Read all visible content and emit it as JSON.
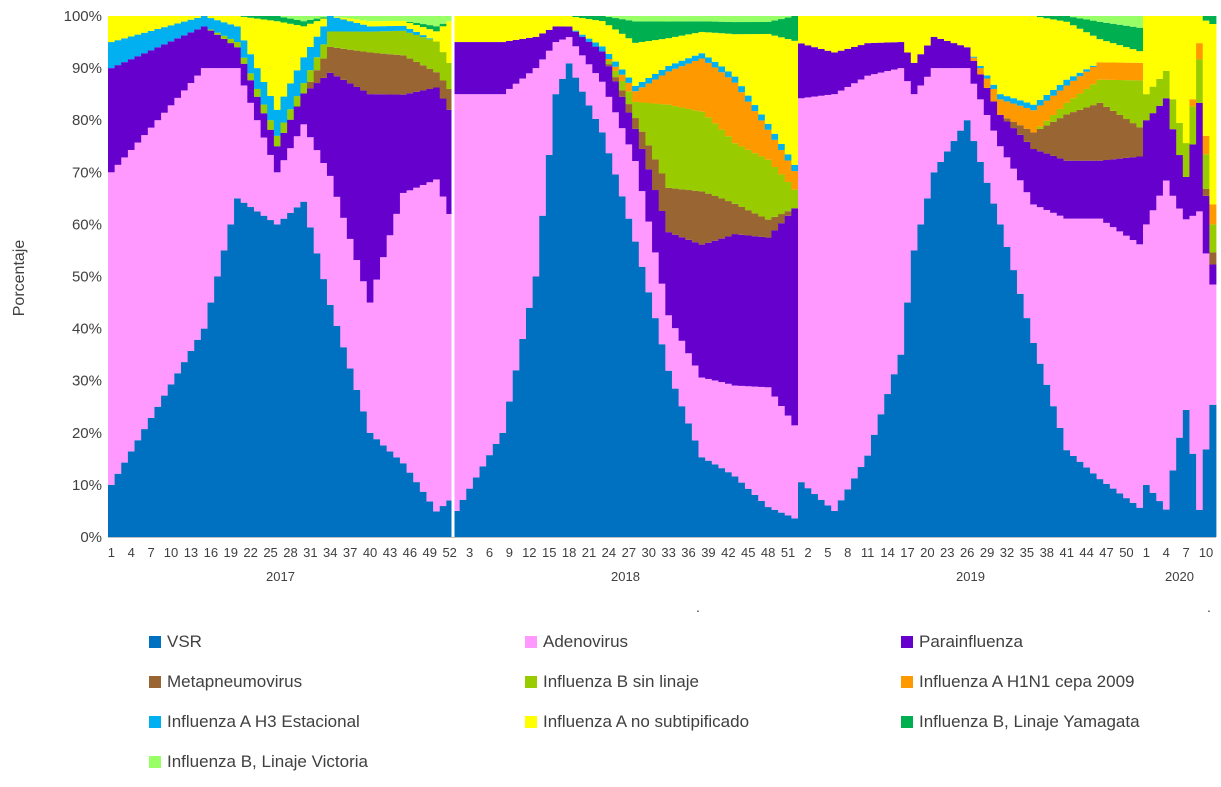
{
  "chart_data": {
    "type": "bar",
    "stacked": "percent",
    "ylabel": "Porcentaje",
    "ylim": [
      0,
      100
    ],
    "yticks": [
      "0%",
      "10%",
      "20%",
      "30%",
      "40%",
      "50%",
      "60%",
      "70%",
      "80%",
      "90%",
      "100%"
    ],
    "years": [
      {
        "label": "2017",
        "weeks": [
          1,
          52
        ]
      },
      {
        "label": "2018",
        "weeks": [
          1,
          52
        ]
      },
      {
        "label": "2019",
        "weeks": [
          1,
          52
        ]
      },
      {
        "label": "2020",
        "weeks": [
          1,
          11
        ]
      }
    ],
    "xtick_labels": [
      [
        "1",
        "4",
        "7",
        "10",
        "13",
        "16",
        "19",
        "22",
        "25",
        "28",
        "31",
        "34",
        "37",
        "40",
        "43",
        "46",
        "49",
        "52"
      ],
      [
        "3",
        "6",
        "9",
        "12",
        "15",
        "18",
        "21",
        "24",
        "27",
        "30",
        "33",
        "36",
        "39",
        "42",
        "45",
        "48",
        "51"
      ],
      [
        "2",
        "5",
        "8",
        "11",
        "14",
        "17",
        "20",
        "23",
        "26",
        "29",
        "32",
        "35",
        "38",
        "41",
        "44",
        "47",
        "50"
      ],
      [
        "1",
        "4",
        "7",
        "10"
      ]
    ],
    "series_names": [
      "VSR",
      "Adenovirus",
      "Parainfluenza",
      "Metapneumovirus",
      "Influenza B sin linaje",
      "Influenza A H1N1 cepa 2009",
      "Influenza A H3 Estacional",
      "Influenza A no subtipificado",
      "Influenza B, Linaje Yamagata",
      "Influenza B, Linaje Victoria"
    ],
    "colors": [
      "#0070c0",
      "#ff99ff",
      "#6600cc",
      "#996633",
      "#99cc00",
      "#ff9900",
      "#00b0f0",
      "#ffff00",
      "#00b050",
      "#99ff66"
    ],
    "anchors": {
      "x": [
        1,
        15,
        20,
        26,
        30,
        34,
        40,
        45,
        50,
        52,
        53,
        60,
        65,
        68,
        70,
        75,
        80,
        85,
        90,
        95,
        100,
        104,
        105,
        110,
        115,
        120,
        122,
        125,
        130,
        135,
        140,
        145,
        150,
        156,
        157,
        160,
        163,
        165,
        167
      ],
      "values": [
        [
          10,
          40,
          65,
          60,
          65,
          45,
          20,
          15,
          5,
          7,
          5,
          20,
          50,
          85,
          90,
          80,
          55,
          30,
          15,
          10,
          5,
          3,
          10,
          5,
          15,
          35,
          55,
          70,
          80,
          60,
          35,
          15,
          10,
          5,
          10,
          5,
          30,
          5,
          33
        ],
        [
          60,
          50,
          25,
          10,
          15,
          25,
          25,
          55,
          65,
          55,
          80,
          65,
          40,
          10,
          5,
          10,
          15,
          10,
          15,
          15,
          20,
          15,
          70,
          80,
          70,
          55,
          30,
          20,
          10,
          15,
          25,
          40,
          45,
          45,
          50,
          60,
          45,
          55,
          30
        ],
        [
          20,
          8,
          4,
          5,
          6,
          20,
          40,
          20,
          18,
          20,
          10,
          10,
          6,
          3,
          2,
          6,
          6,
          15,
          25,
          25,
          25,
          35,
          10,
          8,
          6,
          5,
          6,
          6,
          4,
          6,
          10,
          10,
          10,
          15,
          20,
          15,
          10,
          20,
          5
        ],
        [
          0,
          0,
          0,
          0,
          0,
          5,
          8,
          8,
          3,
          4,
          0,
          0,
          0,
          0,
          0,
          0,
          2,
          8,
          10,
          5,
          3,
          0,
          0,
          0,
          0,
          0,
          0,
          0,
          0,
          0,
          3,
          8,
          10,
          5,
          0,
          0,
          0,
          0,
          3
        ],
        [
          0,
          0,
          1,
          2,
          2,
          3,
          4,
          5,
          6,
          5,
          0,
          0,
          0,
          0,
          0,
          0,
          3,
          15,
          15,
          10,
          10,
          3,
          0,
          0,
          0,
          0,
          0,
          0,
          0,
          0,
          0,
          2,
          4,
          8,
          5,
          5,
          8,
          8,
          7
        ],
        [
          0,
          0,
          0,
          0,
          0,
          0,
          0,
          0,
          0,
          0,
          0,
          0,
          0,
          0,
          0,
          0,
          2,
          6,
          10,
          10,
          5,
          3,
          0,
          0,
          0,
          0,
          0,
          0,
          0,
          3,
          4,
          3,
          3,
          3,
          0,
          0,
          0,
          3,
          5
        ],
        [
          5,
          2,
          3,
          5,
          5,
          3,
          1,
          1,
          0,
          0,
          0,
          0,
          0,
          0,
          0,
          1,
          1,
          1,
          1,
          1,
          1,
          1,
          0,
          0,
          0,
          0,
          0,
          0,
          0,
          1,
          1,
          1,
          0,
          0,
          0,
          0,
          0,
          0,
          0
        ],
        [
          5,
          0,
          2,
          17,
          6,
          0,
          1,
          1,
          2,
          8,
          5,
          5,
          4,
          2,
          2,
          5,
          8,
          5,
          4,
          7,
          15,
          20,
          5,
          7,
          5,
          5,
          9,
          4,
          6,
          15,
          16,
          10,
          4,
          2,
          15,
          10,
          30,
          5,
          45
        ],
        [
          0,
          0,
          0,
          1,
          1,
          0,
          0,
          0,
          1,
          0,
          0,
          0,
          0,
          0,
          0,
          1,
          4,
          3,
          2,
          2,
          2,
          4,
          0,
          0,
          0,
          0,
          0,
          0,
          0,
          0,
          0,
          1,
          3,
          4,
          0,
          0,
          0,
          0,
          2
        ],
        [
          0,
          0,
          0,
          0,
          1,
          0,
          1,
          1,
          2,
          1,
          0,
          0,
          0,
          0,
          0,
          0,
          1,
          1,
          1,
          1,
          1,
          0,
          0,
          0,
          0,
          0,
          0,
          0,
          0,
          0,
          0,
          0,
          1,
          2,
          0,
          0,
          0,
          0,
          0
        ]
      ]
    }
  },
  "legend": {
    "items": [
      {
        "label": "VSR",
        "color": "#0070c0"
      },
      {
        "label": "Adenovirus",
        "color": "#ff99ff"
      },
      {
        "label": "Parainfluenza",
        "color": "#6600cc"
      },
      {
        "label": "Metapneumovirus",
        "color": "#996633"
      },
      {
        "label": "Influenza B sin linaje",
        "color": "#99cc00"
      },
      {
        "label": "Influenza A H1N1 cepa 2009",
        "color": "#ff9900"
      },
      {
        "label": "Influenza A H3 Estacional",
        "color": "#00b0f0"
      },
      {
        "label": "Influenza A no subtipificado",
        "color": "#ffff00"
      },
      {
        "label": "Influenza B, Linaje Yamagata",
        "color": "#00b050"
      },
      {
        "label": "Influenza B, Linaje Victoria",
        "color": "#99ff66"
      }
    ]
  }
}
